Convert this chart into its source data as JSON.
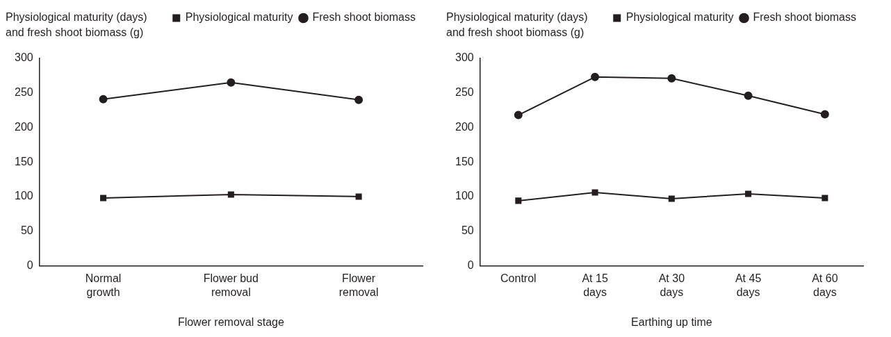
{
  "chart_data": [
    {
      "type": "line",
      "ylabel": "Physiological maturity (days) and fresh shoot biomass (g)",
      "xlabel": "Flower removal stage",
      "categories": [
        "Normal\ngrowth",
        "Flower bud\nremoval",
        "Flower\nremoval"
      ],
      "ylim": [
        0,
        300
      ],
      "yticks": [
        0,
        50,
        100,
        150,
        200,
        250,
        300
      ],
      "grid": false,
      "legend": "top right",
      "series": [
        {
          "name": "Physiological maturity",
          "color": "#231f20",
          "marker": "square",
          "values": [
            98,
            103,
            100
          ]
        },
        {
          "name": "Fresh shoot biomass",
          "color": "#231f20",
          "marker": "circle",
          "values": [
            241,
            265,
            240
          ]
        }
      ]
    },
    {
      "type": "line",
      "ylabel": "Physiological maturity (days) and fresh shoot biomass (g)",
      "xlabel": "Earthing up time",
      "categories": [
        "Control",
        "At 15\ndays",
        "At 30\ndays",
        "At 45\ndays",
        "At 60\ndays"
      ],
      "ylim": [
        0,
        300
      ],
      "yticks": [
        0,
        50,
        100,
        150,
        200,
        250,
        300
      ],
      "grid": false,
      "legend": "top right",
      "series": [
        {
          "name": "Physiological maturity",
          "color": "#231f20",
          "marker": "square",
          "values": [
            94,
            106,
            97,
            104,
            98
          ]
        },
        {
          "name": "Fresh shoot biomass",
          "color": "#231f20",
          "marker": "circle",
          "values": [
            218,
            273,
            271,
            246,
            219
          ]
        }
      ]
    }
  ]
}
